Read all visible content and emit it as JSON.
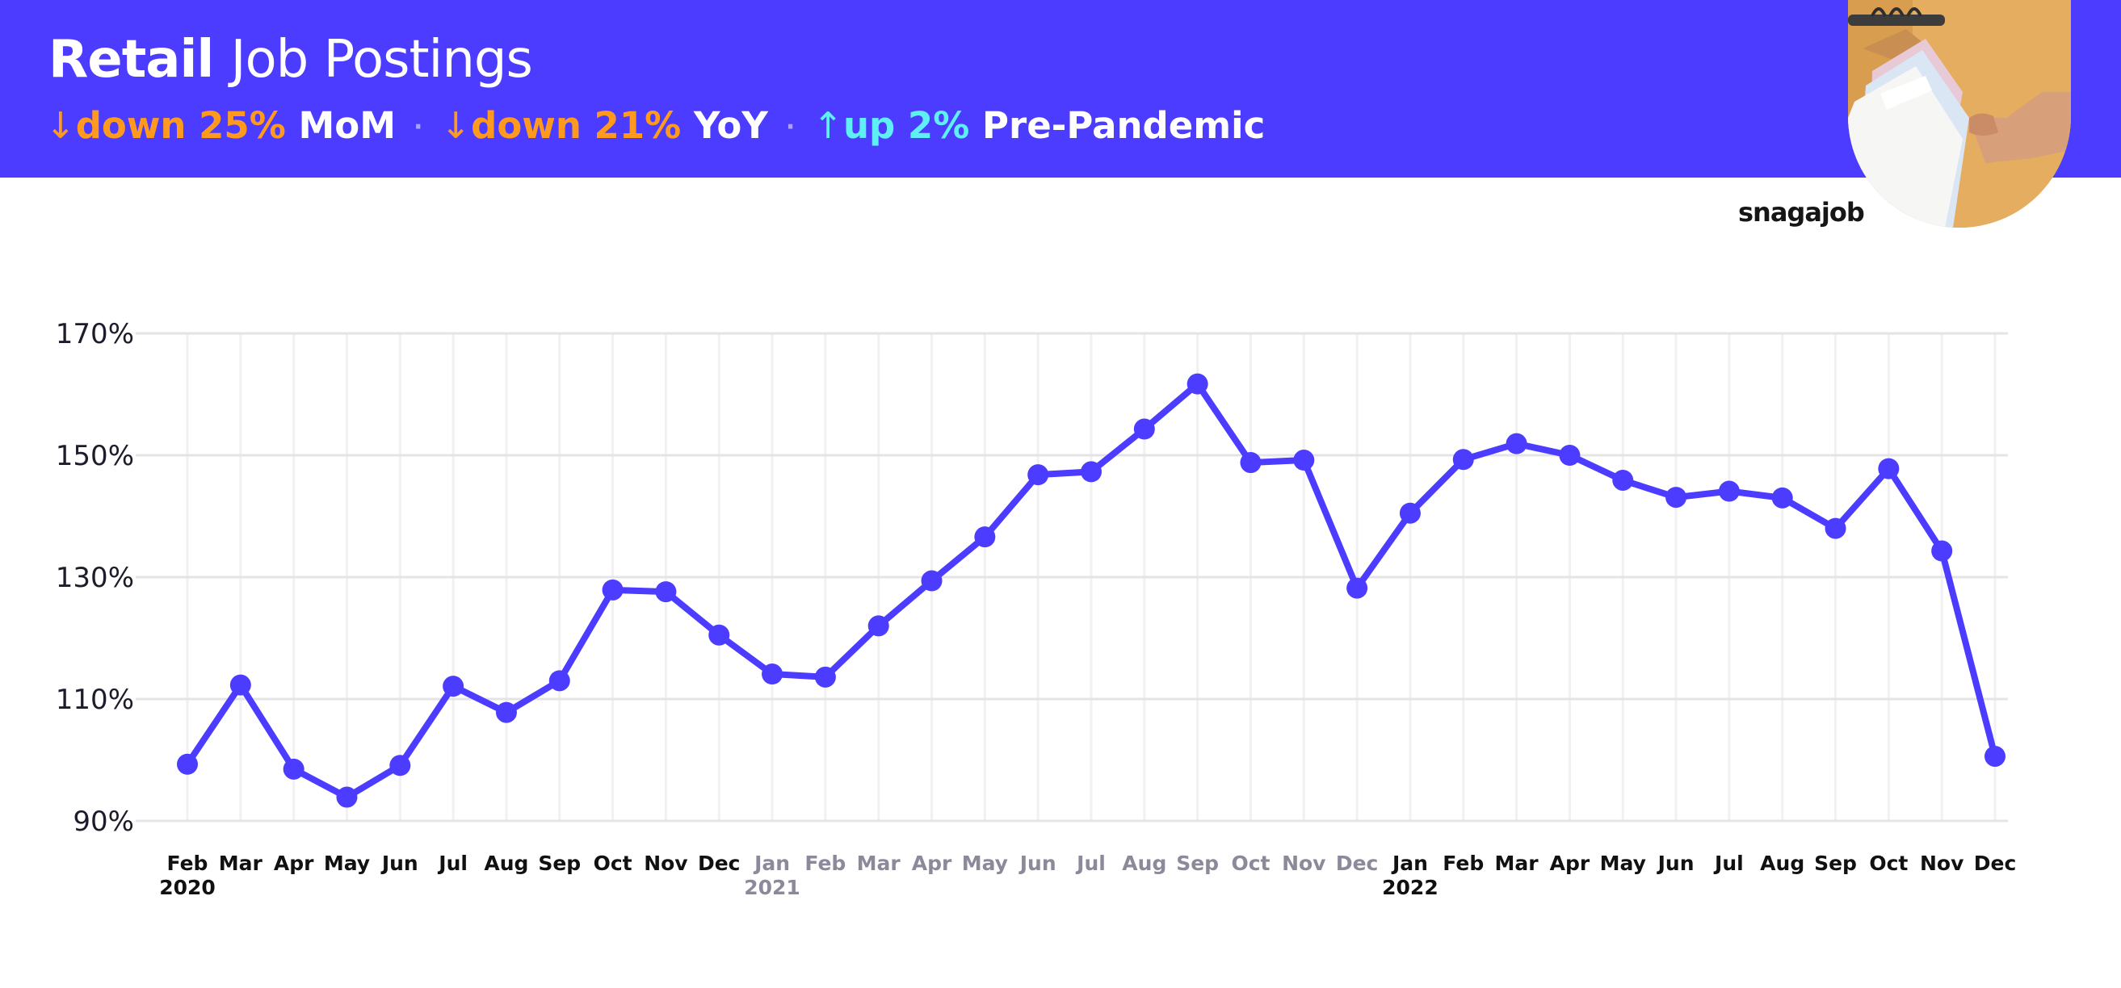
{
  "header": {
    "title_bold": "Retail",
    "title_light": "Job Postings",
    "colors": {
      "banner": "#4b3cff",
      "down": "#ff9a1f",
      "up": "#5ef0f5",
      "line": "#4b3cff"
    },
    "stats": [
      {
        "arrow": "↓",
        "value": "down 25%",
        "label": "MoM",
        "direction": "down"
      },
      {
        "arrow": "↓",
        "value": "down 21%",
        "label": "YoY",
        "direction": "down"
      },
      {
        "arrow": "↑",
        "value": "up 2%",
        "label": "Pre-Pandemic",
        "direction": "up"
      }
    ],
    "separator": "·"
  },
  "brand": {
    "logo_text": "snagajob",
    "photo_icon": "clothing-rack-photo"
  },
  "chart_data": {
    "type": "line",
    "ylim": [
      90,
      170
    ],
    "y_ticks": [
      90,
      110,
      130,
      150,
      170
    ],
    "y_tick_labels": [
      "90%",
      "110%",
      "130%",
      "150%",
      "170%"
    ],
    "grid": true,
    "categories": [
      "Feb",
      "Mar",
      "Apr",
      "May",
      "Jun",
      "Jul",
      "Aug",
      "Sep",
      "Oct",
      "Nov",
      "Dec",
      "Jan",
      "Feb",
      "Mar",
      "Apr",
      "May",
      "Jun",
      "Jul",
      "Aug",
      "Sep",
      "Oct",
      "Nov",
      "Dec",
      "Jan",
      "Feb",
      "Mar",
      "Apr",
      "May",
      "Jun",
      "Jul",
      "Aug",
      "Sep",
      "Oct",
      "Nov",
      "Dec"
    ],
    "year_labels": [
      {
        "index": 0,
        "label": "2020"
      },
      {
        "index": 11,
        "label": "2021"
      },
      {
        "index": 23,
        "label": "2022"
      }
    ],
    "muted_range": [
      11,
      22
    ],
    "series": [
      {
        "values": [
          99.3,
          112.3,
          98.5,
          93.9,
          99.1,
          112.1,
          107.8,
          113.0,
          127.9,
          127.6,
          120.5,
          114.1,
          113.6,
          122.0,
          129.4,
          136.6,
          146.8,
          147.3,
          154.3,
          161.7,
          148.8,
          149.2,
          128.2,
          140.5,
          149.3,
          151.9,
          150.0,
          145.9,
          143.1,
          144.1,
          143.0,
          138.0,
          147.8,
          134.3,
          100.6
        ]
      }
    ]
  }
}
